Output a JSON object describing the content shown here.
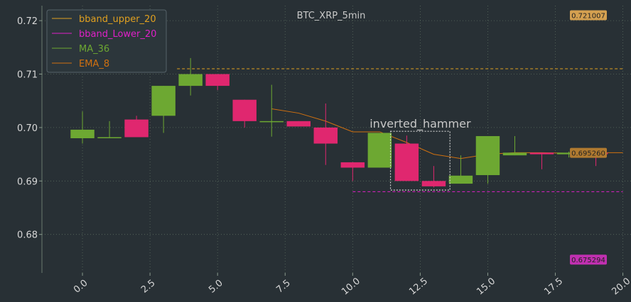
{
  "chart_data": {
    "type": "candlestick",
    "title": "BTC_XRP_5min",
    "xlim": [
      -1.5,
      20.3
    ],
    "ylim": [
      0.6728,
      0.7228
    ],
    "x_ticks": [
      0.0,
      2.5,
      5.0,
      7.5,
      10.0,
      12.5,
      15.0,
      17.5,
      20.0
    ],
    "x_tick_labels": [
      "0.0",
      "2.5",
      "5.0",
      "7.5",
      "10.0",
      "12.5",
      "15.0",
      "17.5",
      "20.0"
    ],
    "y_ticks": [
      0.68,
      0.69,
      0.7,
      0.71,
      0.72
    ],
    "y_tick_labels": [
      "0.68",
      "0.69",
      "0.70",
      "0.71",
      "0.72"
    ],
    "grid": true,
    "legend_position": "top-left",
    "colors": {
      "background": "#283035",
      "grid": "#5a6b5e",
      "up": "#6da832",
      "down": "#e0276f",
      "bband_upper": "#e0a020",
      "bband_lower": "#e020c8",
      "ma": "#6da832",
      "ema": "#d07010",
      "annot_box": "#d0d0d0"
    },
    "candles": [
      {
        "x": 0,
        "open": 0.698,
        "high": 0.703,
        "low": 0.697,
        "close": 0.6996
      },
      {
        "x": 1,
        "open": 0.698,
        "high": 0.7012,
        "low": 0.698,
        "close": 0.6982
      },
      {
        "x": 2,
        "open": 0.7015,
        "high": 0.7022,
        "low": 0.6982,
        "close": 0.6982
      },
      {
        "x": 3,
        "open": 0.7022,
        "high": 0.7078,
        "low": 0.699,
        "close": 0.7078
      },
      {
        "x": 4,
        "open": 0.7078,
        "high": 0.713,
        "low": 0.706,
        "close": 0.71
      },
      {
        "x": 5,
        "open": 0.71,
        "high": 0.71,
        "low": 0.707,
        "close": 0.7078
      },
      {
        "x": 6,
        "open": 0.7052,
        "high": 0.7052,
        "low": 0.7,
        "close": 0.7012
      },
      {
        "x": 7,
        "open": 0.7012,
        "high": 0.708,
        "low": 0.6983,
        "close": 0.7012
      },
      {
        "x": 8,
        "open": 0.7012,
        "high": 0.7012,
        "low": 0.7002,
        "close": 0.7002
      },
      {
        "x": 9,
        "open": 0.7,
        "high": 0.7045,
        "low": 0.693,
        "close": 0.697
      },
      {
        "x": 10,
        "open": 0.6935,
        "high": 0.6935,
        "low": 0.69,
        "close": 0.6925
      },
      {
        "x": 11,
        "open": 0.6925,
        "high": 0.699,
        "low": 0.6925,
        "close": 0.699
      },
      {
        "x": 12,
        "open": 0.697,
        "high": 0.6985,
        "low": 0.69,
        "close": 0.69
      },
      {
        "x": 13,
        "open": 0.69,
        "high": 0.6928,
        "low": 0.6888,
        "close": 0.689
      },
      {
        "x": 14,
        "open": 0.6895,
        "high": 0.6948,
        "low": 0.6895,
        "close": 0.691
      },
      {
        "x": 15,
        "open": 0.6911,
        "high": 0.6984,
        "low": 0.6895,
        "close": 0.6984
      },
      {
        "x": 16,
        "open": 0.6948,
        "high": 0.6984,
        "low": 0.6948,
        "close": 0.6953
      },
      {
        "x": 17,
        "open": 0.6953,
        "high": 0.6953,
        "low": 0.6922,
        "close": 0.695
      },
      {
        "x": 18,
        "open": 0.695,
        "high": 0.6955,
        "low": 0.6944,
        "close": 0.6953
      },
      {
        "x": 19,
        "open": 0.6953,
        "high": 0.6953,
        "low": 0.6928,
        "close": 0.695
      }
    ],
    "series": [
      {
        "name": "bband_upper_20",
        "color": "#e0a020",
        "dashed": true,
        "x": [
          3.5,
          20
        ],
        "values": [
          0.711,
          0.711
        ]
      },
      {
        "name": "bband_Lower_20",
        "color": "#e020c8",
        "dashed": true,
        "x": [
          10,
          20
        ],
        "values": [
          0.688,
          0.688
        ]
      },
      {
        "name": "MA_36",
        "color": "#6da832",
        "dashed": false,
        "x": [],
        "values": []
      },
      {
        "name": "EMA_8",
        "color": "#d07010",
        "dashed": false,
        "x": [
          7,
          8,
          9,
          10,
          11,
          12,
          13,
          14,
          15,
          16,
          17,
          18,
          19,
          20
        ],
        "values": [
          0.7035,
          0.7027,
          0.7012,
          0.6992,
          0.6992,
          0.6972,
          0.695,
          0.6942,
          0.695,
          0.6953,
          0.6953,
          0.6952,
          0.6953,
          0.6953
        ]
      }
    ],
    "badges": [
      {
        "value": "0.721007",
        "y": 0.721007,
        "color": "#d4a050"
      },
      {
        "value": "0.695260",
        "y": 0.69526,
        "color": "#b07a30"
      },
      {
        "value": "0.675294",
        "y": 0.675294,
        "color": "#c030b0"
      }
    ],
    "annotation": {
      "text": "inverted_hammer",
      "box_x": [
        11.4,
        13.6
      ],
      "box_y": [
        0.6883,
        0.6993
      ]
    }
  }
}
